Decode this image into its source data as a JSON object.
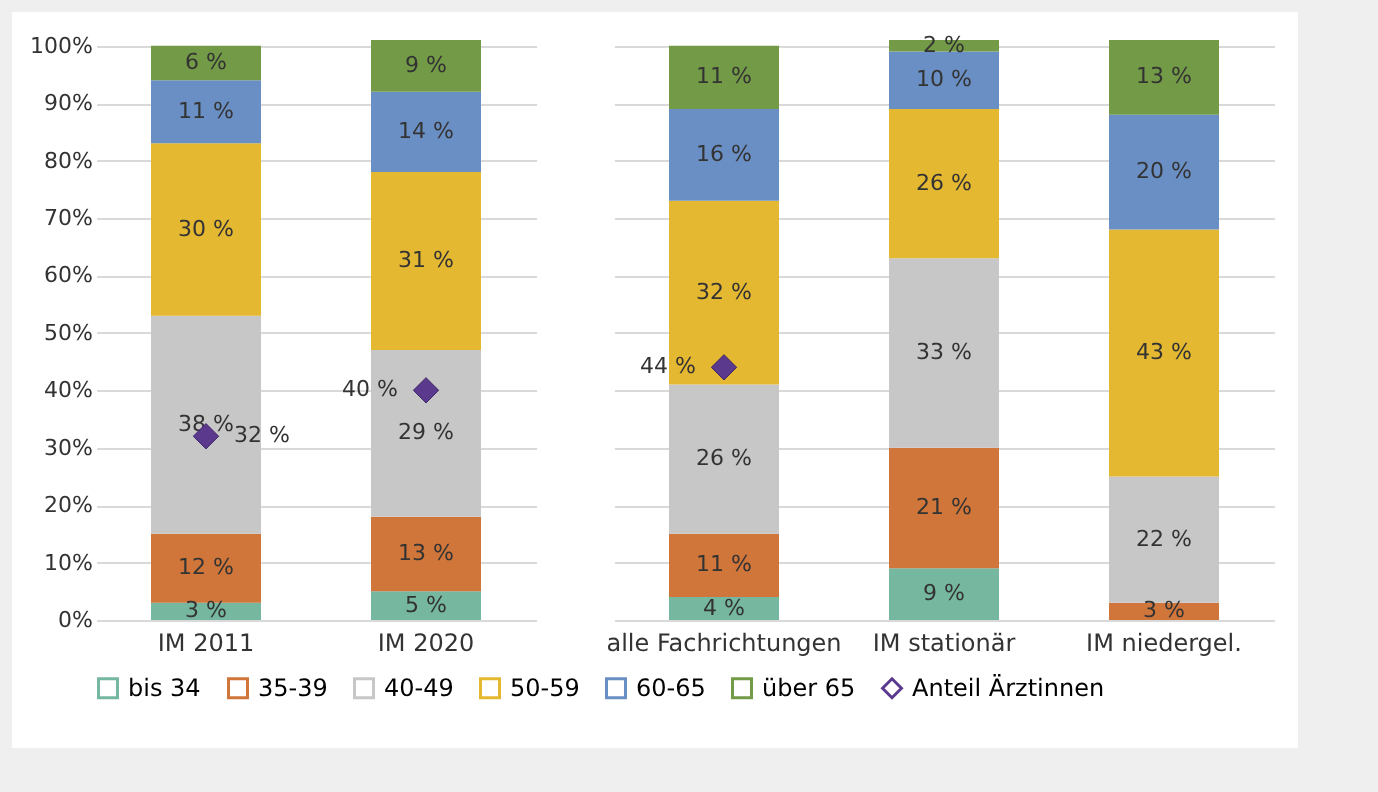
{
  "chart_data": [
    {
      "type": "bar",
      "stacked": true,
      "categories": [
        "IM 2011",
        "IM 2020"
      ],
      "ylim": [
        0,
        101
      ],
      "yticks": [
        {
          "value": 0,
          "label": "0%"
        },
        {
          "value": 10,
          "label": "10%"
        },
        {
          "value": 20,
          "label": "20%"
        },
        {
          "value": 30,
          "label": "30%"
        },
        {
          "value": 40,
          "label": "40%"
        },
        {
          "value": 50,
          "label": "50%"
        },
        {
          "value": 60,
          "label": "60%"
        },
        {
          "value": 70,
          "label": "70%"
        },
        {
          "value": 80,
          "label": "80%"
        },
        {
          "value": 90,
          "label": "90%"
        },
        {
          "value": 100,
          "label": "100%"
        }
      ],
      "grid": "y",
      "legend": "bottom",
      "series": [
        {
          "name": "bis 34",
          "color": "#76b7a0",
          "values": [
            3,
            5
          ],
          "value_labels": [
            "3 %",
            "5 %"
          ]
        },
        {
          "name": "35-39",
          "color": "#d0763a",
          "values": [
            12,
            13
          ],
          "value_labels": [
            "12 %",
            "13 %"
          ]
        },
        {
          "name": "40-49",
          "color": "#c8c7c8",
          "values": [
            38,
            29
          ],
          "value_labels": [
            "38 %",
            "29 %"
          ]
        },
        {
          "name": "50-59",
          "color": "#e5b832",
          "values": [
            30,
            31
          ],
          "value_labels": [
            "30 %",
            "31 %"
          ]
        },
        {
          "name": "60-65",
          "color": "#6a8fc4",
          "values": [
            11,
            14
          ],
          "value_labels": [
            "11 %",
            "14 %"
          ]
        },
        {
          "name": "über 65",
          "color": "#739a47",
          "values": [
            6,
            9
          ],
          "value_labels": [
            "6 %",
            "9 %"
          ]
        },
        {
          "name": "Anteil Ärztinnen",
          "type": "scatter",
          "marker": "diamond",
          "color": "#5b3a8e",
          "values": [
            32,
            40
          ],
          "value_labels": [
            "32 %",
            "40 %"
          ]
        }
      ]
    },
    {
      "type": "bar",
      "stacked": true,
      "categories": [
        "alle Fachrichtungen",
        "IM stationär",
        "IM niedergel."
      ],
      "ylim": [
        0,
        101
      ],
      "yticks": [
        0,
        10,
        20,
        30,
        40,
        50,
        60,
        70,
        80,
        90,
        100
      ],
      "grid": "y",
      "tick_labels": "x",
      "series": [
        {
          "name": "bis 34",
          "color": "#76b7a0",
          "values": [
            4,
            9,
            null
          ],
          "value_labels": [
            "4 %",
            "9 %",
            null
          ]
        },
        {
          "name": "35-39",
          "color": "#d0763a",
          "values": [
            11,
            21,
            3
          ],
          "value_labels": [
            "11 %",
            "21 %",
            "3 %"
          ]
        },
        {
          "name": "40-49",
          "color": "#c8c7c8",
          "values": [
            26,
            33,
            22
          ],
          "value_labels": [
            "26 %",
            "33 %",
            "22 %"
          ]
        },
        {
          "name": "50-59",
          "color": "#e5b832",
          "values": [
            32,
            26,
            43
          ],
          "value_labels": [
            "32 %",
            "26 %",
            "43 %"
          ]
        },
        {
          "name": "60-65",
          "color": "#6a8fc4",
          "values": [
            16,
            10,
            20
          ],
          "value_labels": [
            "16 %",
            "10 %",
            "20 %"
          ]
        },
        {
          "name": "über 65",
          "color": "#739a47",
          "values": [
            11,
            2,
            13
          ],
          "value_labels": [
            "11 %",
            "2 %",
            "13 %"
          ]
        },
        {
          "name": "Anteil Ärztinnen",
          "type": "scatter",
          "marker": "diamond",
          "color": "#5b3a8e",
          "values": [
            44,
            null,
            null
          ],
          "value_labels": [
            "44 %",
            null,
            null
          ]
        }
      ]
    }
  ]
}
